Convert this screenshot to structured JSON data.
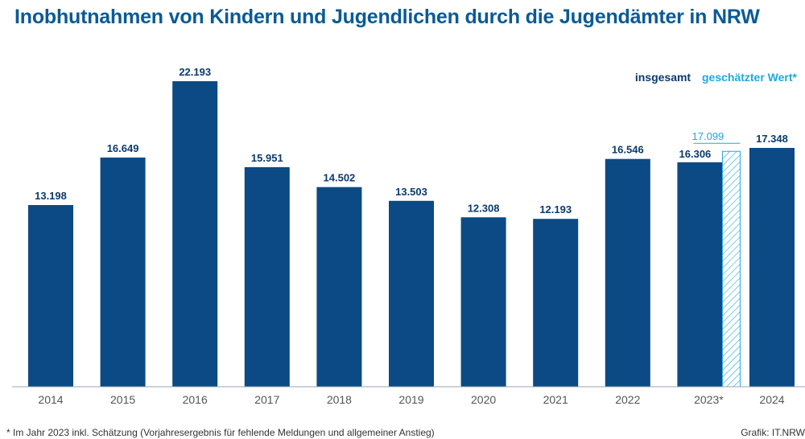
{
  "title": "Inobhutnahmen von Kindern und Jugendlichen durch die Jugendämter in NRW",
  "legend": {
    "total": "insgesamt",
    "estimate": "geschätzter Wert*"
  },
  "footnote": "* Im Jahr 2023 inkl. Schätzung (Vorjahresergebnis für fehlende Meldungen und allgemeiner Anstieg)",
  "source": "Grafik: IT.NRW",
  "colors": {
    "bar": "#0b4a84",
    "estimate": "#1fa8e0",
    "title": "#0a5a96",
    "label": "#0b3a6e",
    "axis": "#555555"
  },
  "chart_data": {
    "type": "bar",
    "categories": [
      "2014",
      "2015",
      "2016",
      "2017",
      "2018",
      "2019",
      "2020",
      "2021",
      "2022",
      "2023*",
      "2024"
    ],
    "series": [
      {
        "name": "insgesamt",
        "values": [
          13198,
          16649,
          22193,
          15951,
          14502,
          13503,
          12308,
          12193,
          16546,
          16306,
          17348
        ],
        "labels": [
          "13.198",
          "16.649",
          "22.193",
          "15.951",
          "14.502",
          "13.503",
          "12.308",
          "12.193",
          "16.546",
          "16.306",
          "17.348"
        ]
      },
      {
        "name": "geschätzter Wert*",
        "values": [
          null,
          null,
          null,
          null,
          null,
          null,
          null,
          null,
          null,
          17099,
          null
        ],
        "labels": [
          "",
          "",
          "",
          "",
          "",
          "",
          "",
          "",
          "",
          "17.099",
          ""
        ]
      }
    ],
    "ylim": [
      0,
      24000
    ],
    "grid": false,
    "legend_position": "top-right"
  }
}
